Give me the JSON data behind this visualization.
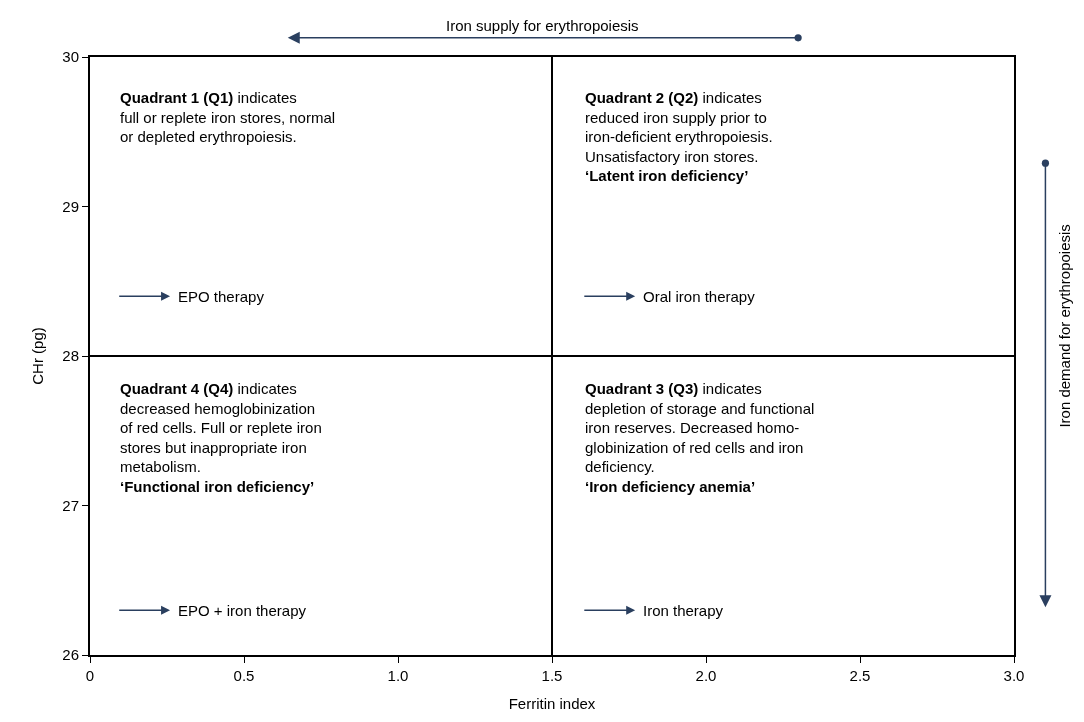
{
  "chart_data": {
    "type": "scatter",
    "xlabel": "Ferritin index",
    "ylabel": "CHr (pg)",
    "xlim": [
      0,
      3
    ],
    "ylim": [
      26,
      30
    ],
    "xticks": [
      0,
      0.5,
      {
        "value": 1,
        "label": "1.0"
      },
      1.5,
      {
        "value": 2,
        "label": "2.0"
      },
      2.5,
      {
        "value": 3,
        "label": "3.0"
      }
    ],
    "yticks": [
      26,
      27,
      28,
      29,
      30
    ],
    "ref_lines": [
      {
        "axis": "x",
        "value": 1.5,
        "color": "#000000"
      },
      {
        "axis": "y",
        "value": 28,
        "color": "#000000"
      }
    ],
    "annotations": [
      "Iron supply for erythropoiesis",
      "Iron demand for erythropoiesis",
      "Quadrant 1 (Q1)",
      "indicates\nfull or replete iron stores, normal\nor depleted erythropoiesis.",
      "EPO therapy",
      "Quadrant 2 (Q2)",
      "indicates\nreduced iron supply prior to\niron-deficient erythropoiesis.\nUnsatisfactory iron stores.",
      "‘Latent iron deficiency’",
      "Oral iron therapy",
      "Quadrant 4 (Q4)",
      "indicates\ndecreased hemoglobinization\nof red cells. Full or replete iron\nstores but inappropriate iron\nmetabolism.",
      "‘Functional iron deficiency’",
      "EPO + iron therapy",
      "Quadrant 3 (Q3)",
      "indicates\ndepletion of storage and functional\niron reserves. Decreased homo-\nglobinization of red cells and iron\ndeficiency.",
      "‘Iron deficiency anemia’",
      "Iron therapy"
    ]
  }
}
